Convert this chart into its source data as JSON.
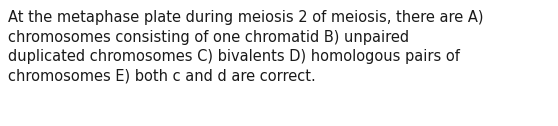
{
  "text": "At the metaphase plate during meiosis 2 of meiosis, there are A)\nchromosomes consisting of one chromatid B) unpaired\nduplicated chromosomes C) bivalents D) homologous pairs of\nchromosomes E) both c and d are correct.",
  "background_color": "#ffffff",
  "text_color": "#1a1a1a",
  "font_size": 10.5,
  "fig_width": 5.58,
  "fig_height": 1.26,
  "dpi": 100
}
